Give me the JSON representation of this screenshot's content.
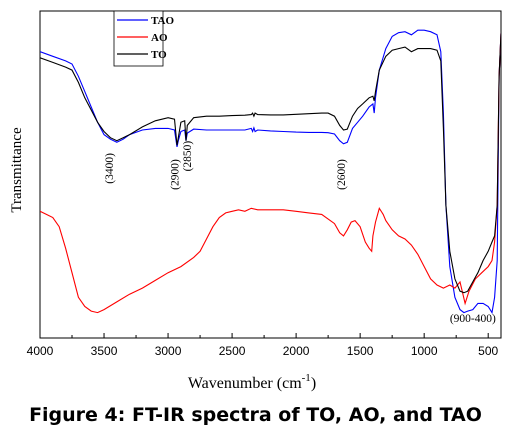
{
  "figure": {
    "caption": "Figure 4: FT-IR spectra of TO, AO, and TAO"
  },
  "chart_data": {
    "type": "line",
    "title": "",
    "xlabel": "Wavenumber (cm",
    "xlabel_sup": "-1",
    "xlabel_close": ")",
    "ylabel": "Transmittance",
    "xlim": [
      4000,
      400
    ],
    "x_reversed": true,
    "y_ticks_shown": false,
    "grid": false,
    "legend_position": "top-left",
    "x_ticks": [
      {
        "value": 4000,
        "label": "4000"
      },
      {
        "value": 3500,
        "label": "3500"
      },
      {
        "value": 3000,
        "label": "3000"
      },
      {
        "value": 2500,
        "label": "2500"
      },
      {
        "value": 2000,
        "label": "2000"
      },
      {
        "value": 1500,
        "label": "1500"
      },
      {
        "value": 1000,
        "label": "1000"
      },
      {
        "value": 500,
        "label": "500"
      }
    ],
    "series": [
      {
        "name": "TAO",
        "color": "#0000ff",
        "points": [
          [
            4000,
            0.9
          ],
          [
            3900,
            0.885
          ],
          [
            3800,
            0.87
          ],
          [
            3750,
            0.86
          ],
          [
            3700,
            0.82
          ],
          [
            3650,
            0.77
          ],
          [
            3600,
            0.72
          ],
          [
            3550,
            0.67
          ],
          [
            3500,
            0.63
          ],
          [
            3450,
            0.615
          ],
          [
            3400,
            0.605
          ],
          [
            3350,
            0.615
          ],
          [
            3300,
            0.63
          ],
          [
            3200,
            0.645
          ],
          [
            3100,
            0.65
          ],
          [
            3000,
            0.65
          ],
          [
            2950,
            0.645
          ],
          [
            2930,
            0.59
          ],
          [
            2920,
            0.61
          ],
          [
            2900,
            0.64
          ],
          [
            2870,
            0.645
          ],
          [
            2860,
            0.61
          ],
          [
            2850,
            0.635
          ],
          [
            2800,
            0.648
          ],
          [
            2700,
            0.645
          ],
          [
            2600,
            0.645
          ],
          [
            2500,
            0.645
          ],
          [
            2400,
            0.645
          ],
          [
            2350,
            0.65
          ],
          [
            2340,
            0.64
          ],
          [
            2330,
            0.652
          ],
          [
            2320,
            0.64
          ],
          [
            2300,
            0.645
          ],
          [
            2200,
            0.642
          ],
          [
            2100,
            0.64
          ],
          [
            2000,
            0.638
          ],
          [
            1900,
            0.637
          ],
          [
            1800,
            0.637
          ],
          [
            1750,
            0.636
          ],
          [
            1700,
            0.632
          ],
          [
            1660,
            0.61
          ],
          [
            1630,
            0.6
          ],
          [
            1600,
            0.605
          ],
          [
            1560,
            0.65
          ],
          [
            1520,
            0.67
          ],
          [
            1480,
            0.69
          ],
          [
            1430,
            0.72
          ],
          [
            1400,
            0.73
          ],
          [
            1390,
            0.7
          ],
          [
            1380,
            0.75
          ],
          [
            1350,
            0.84
          ],
          [
            1300,
            0.91
          ],
          [
            1250,
            0.95
          ],
          [
            1200,
            0.962
          ],
          [
            1150,
            0.965
          ],
          [
            1100,
            0.955
          ],
          [
            1050,
            0.97
          ],
          [
            1000,
            0.97
          ],
          [
            950,
            0.965
          ],
          [
            900,
            0.955
          ],
          [
            870,
            0.9
          ],
          [
            850,
            0.7
          ],
          [
            830,
            0.4
          ],
          [
            800,
            0.2
          ],
          [
            760,
            0.1
          ],
          [
            720,
            0.06
          ],
          [
            690,
            0.05
          ],
          [
            660,
            0.055
          ],
          [
            620,
            0.06
          ],
          [
            580,
            0.08
          ],
          [
            540,
            0.08
          ],
          [
            500,
            0.07
          ],
          [
            470,
            0.05
          ],
          [
            450,
            0.1
          ],
          [
            430,
            0.22
          ],
          [
            415,
            0.82
          ],
          [
            400,
            0.96
          ]
        ]
      },
      {
        "name": "AO",
        "color": "#ff0000",
        "points": [
          [
            4000,
            0.38
          ],
          [
            3950,
            0.37
          ],
          [
            3900,
            0.36
          ],
          [
            3850,
            0.33
          ],
          [
            3800,
            0.26
          ],
          [
            3750,
            0.18
          ],
          [
            3700,
            0.1
          ],
          [
            3650,
            0.07
          ],
          [
            3600,
            0.055
          ],
          [
            3550,
            0.05
          ],
          [
            3500,
            0.06
          ],
          [
            3400,
            0.085
          ],
          [
            3300,
            0.11
          ],
          [
            3200,
            0.13
          ],
          [
            3100,
            0.155
          ],
          [
            3000,
            0.18
          ],
          [
            2900,
            0.2
          ],
          [
            2800,
            0.23
          ],
          [
            2750,
            0.25
          ],
          [
            2700,
            0.29
          ],
          [
            2650,
            0.33
          ],
          [
            2600,
            0.36
          ],
          [
            2550,
            0.375
          ],
          [
            2500,
            0.38
          ],
          [
            2450,
            0.385
          ],
          [
            2400,
            0.38
          ],
          [
            2350,
            0.39
          ],
          [
            2300,
            0.385
          ],
          [
            2200,
            0.385
          ],
          [
            2100,
            0.385
          ],
          [
            2000,
            0.38
          ],
          [
            1900,
            0.375
          ],
          [
            1800,
            0.37
          ],
          [
            1700,
            0.34
          ],
          [
            1660,
            0.31
          ],
          [
            1630,
            0.3
          ],
          [
            1600,
            0.32
          ],
          [
            1570,
            0.345
          ],
          [
            1540,
            0.35
          ],
          [
            1500,
            0.33
          ],
          [
            1460,
            0.28
          ],
          [
            1430,
            0.26
          ],
          [
            1410,
            0.25
          ],
          [
            1400,
            0.3
          ],
          [
            1380,
            0.345
          ],
          [
            1350,
            0.39
          ],
          [
            1320,
            0.37
          ],
          [
            1300,
            0.35
          ],
          [
            1250,
            0.32
          ],
          [
            1200,
            0.3
          ],
          [
            1150,
            0.29
          ],
          [
            1100,
            0.27
          ],
          [
            1050,
            0.24
          ],
          [
            1000,
            0.2
          ],
          [
            950,
            0.16
          ],
          [
            900,
            0.14
          ],
          [
            850,
            0.13
          ],
          [
            800,
            0.14
          ],
          [
            760,
            0.13
          ],
          [
            720,
            0.15
          ],
          [
            680,
            0.08
          ],
          [
            650,
            0.12
          ],
          [
            600,
            0.16
          ],
          [
            550,
            0.18
          ],
          [
            500,
            0.2
          ],
          [
            470,
            0.22
          ],
          [
            450,
            0.28
          ],
          [
            430,
            0.4
          ],
          [
            415,
            0.82
          ],
          [
            400,
            0.96
          ]
        ]
      },
      {
        "name": "TO",
        "color": "#000000",
        "points": [
          [
            4000,
            0.88
          ],
          [
            3900,
            0.865
          ],
          [
            3800,
            0.85
          ],
          [
            3750,
            0.84
          ],
          [
            3700,
            0.8
          ],
          [
            3650,
            0.75
          ],
          [
            3600,
            0.71
          ],
          [
            3550,
            0.67
          ],
          [
            3500,
            0.64
          ],
          [
            3450,
            0.62
          ],
          [
            3400,
            0.61
          ],
          [
            3350,
            0.62
          ],
          [
            3300,
            0.63
          ],
          [
            3200,
            0.655
          ],
          [
            3100,
            0.675
          ],
          [
            3000,
            0.685
          ],
          [
            2950,
            0.68
          ],
          [
            2930,
            0.595
          ],
          [
            2920,
            0.62
          ],
          [
            2900,
            0.67
          ],
          [
            2870,
            0.675
          ],
          [
            2860,
            0.61
          ],
          [
            2850,
            0.66
          ],
          [
            2800,
            0.685
          ],
          [
            2700,
            0.69
          ],
          [
            2600,
            0.69
          ],
          [
            2500,
            0.692
          ],
          [
            2400,
            0.693
          ],
          [
            2350,
            0.695
          ],
          [
            2340,
            0.7
          ],
          [
            2330,
            0.69
          ],
          [
            2320,
            0.7
          ],
          [
            2300,
            0.695
          ],
          [
            2200,
            0.694
          ],
          [
            2100,
            0.694
          ],
          [
            2000,
            0.696
          ],
          [
            1900,
            0.698
          ],
          [
            1800,
            0.7
          ],
          [
            1750,
            0.7
          ],
          [
            1700,
            0.69
          ],
          [
            1660,
            0.66
          ],
          [
            1630,
            0.645
          ],
          [
            1600,
            0.648
          ],
          [
            1560,
            0.69
          ],
          [
            1520,
            0.715
          ],
          [
            1480,
            0.73
          ],
          [
            1430,
            0.75
          ],
          [
            1400,
            0.755
          ],
          [
            1390,
            0.74
          ],
          [
            1380,
            0.77
          ],
          [
            1350,
            0.84
          ],
          [
            1300,
            0.885
          ],
          [
            1250,
            0.905
          ],
          [
            1200,
            0.91
          ],
          [
            1150,
            0.915
          ],
          [
            1100,
            0.9
          ],
          [
            1050,
            0.91
          ],
          [
            1000,
            0.91
          ],
          [
            950,
            0.91
          ],
          [
            900,
            0.905
          ],
          [
            870,
            0.87
          ],
          [
            850,
            0.65
          ],
          [
            830,
            0.4
          ],
          [
            800,
            0.25
          ],
          [
            760,
            0.16
          ],
          [
            720,
            0.12
          ],
          [
            690,
            0.115
          ],
          [
            660,
            0.12
          ],
          [
            620,
            0.15
          ],
          [
            580,
            0.18
          ],
          [
            540,
            0.22
          ],
          [
            500,
            0.25
          ],
          [
            470,
            0.28
          ],
          [
            450,
            0.3
          ],
          [
            430,
            0.4
          ],
          [
            415,
            0.82
          ],
          [
            400,
            0.96
          ]
        ]
      }
    ],
    "annotations": [
      {
        "label": "(3400)",
        "x": 3430,
        "y": 0.52
      },
      {
        "label": "(2900)",
        "x": 2920,
        "y": 0.5
      },
      {
        "label": "(2850)",
        "x": 2820,
        "y": 0.56
      },
      {
        "label": "(2600)",
        "x": 1620,
        "y": 0.5
      },
      {
        "label": "(900-400)",
        "x": 620,
        "y": 0.02
      }
    ]
  }
}
